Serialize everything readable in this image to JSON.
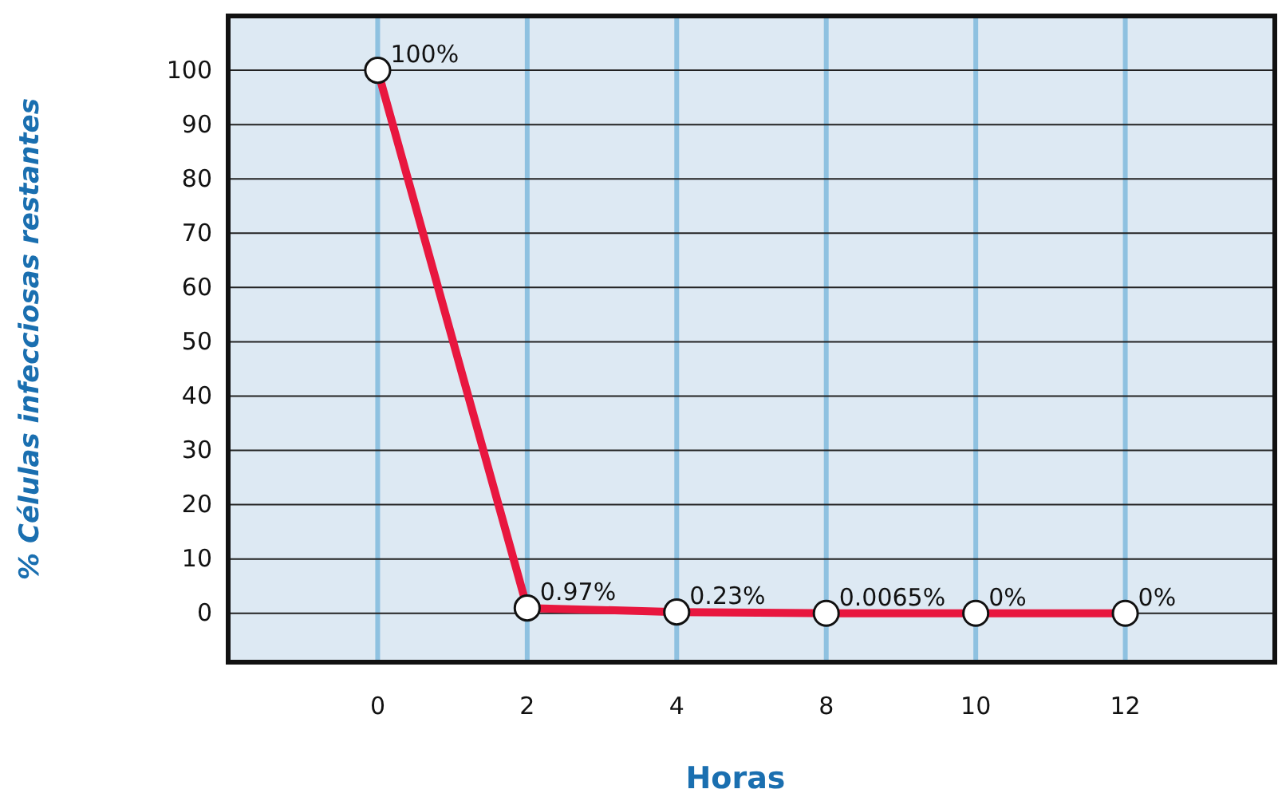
{
  "chart_data": {
    "type": "line",
    "xlabel": "Horas",
    "ylabel": "% Células infecciosas restantes",
    "categories": [
      "0",
      "2",
      "4",
      "8",
      "10",
      "12"
    ],
    "series": [
      {
        "color": "#e8173f",
        "values": [
          100,
          0.97,
          0.23,
          0.0065,
          0,
          0
        ],
        "value_labels": [
          "100%",
          "0.97%",
          "0.23%",
          "0.0065%",
          "0%",
          "0%"
        ]
      }
    ],
    "ylim": [
      -9,
      110
    ],
    "yticks": [
      0,
      10,
      20,
      30,
      40,
      50,
      60,
      70,
      80,
      90,
      100
    ],
    "grid": true,
    "marker": "circle",
    "line_style": "solid"
  }
}
